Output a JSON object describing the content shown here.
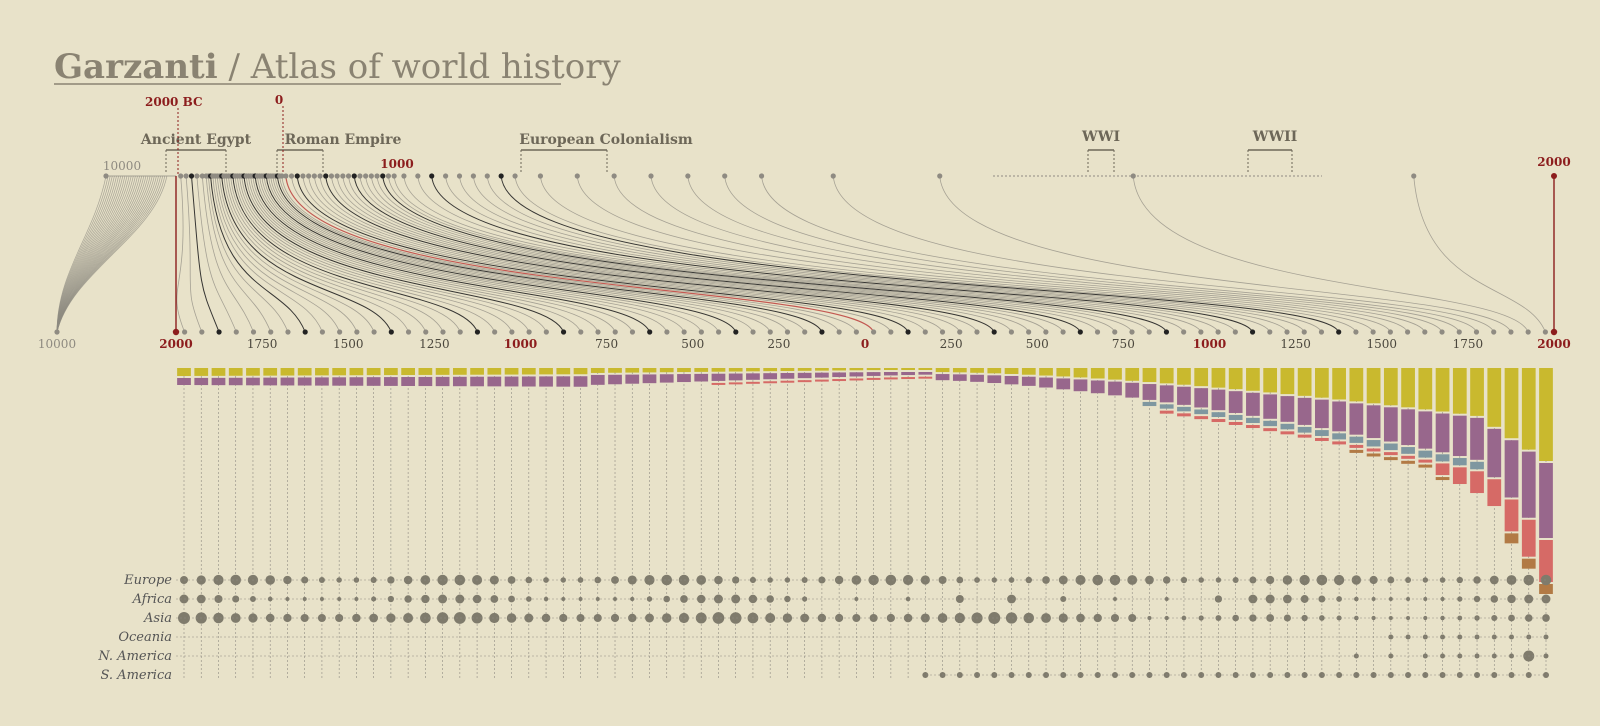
{
  "title": {
    "brand": "Garzanti",
    "separator": " / ",
    "subtitle": "Atlas of world history"
  },
  "markers": {
    "bc2000": "2000 BC",
    "zero": "0",
    "ad1000": "1000",
    "ad2000": "2000",
    "far_left": "10000"
  },
  "eras": [
    {
      "label": "Ancient Egypt",
      "from": 1990,
      "to": 1700
    },
    {
      "label": "Roman Empire",
      "from": 570,
      "to": 200
    },
    {
      "label": "European Colonialism",
      "from": 1390,
      "to": 1650
    },
    {
      "label": "WWI",
      "from": 1914,
      "to": 1918
    },
    {
      "label": "WWII",
      "from": 1939,
      "to": 1945
    }
  ],
  "bottom_axis": {
    "far_left": "10000",
    "ticks": [
      {
        "label": "2000",
        "year": -2000,
        "red": true
      },
      {
        "label": "1750",
        "year": -1750
      },
      {
        "label": "1500",
        "year": -1500
      },
      {
        "label": "1250",
        "year": -1250
      },
      {
        "label": "1000",
        "year": -1000,
        "red": true
      },
      {
        "label": "750",
        "year": -750
      },
      {
        "label": "500",
        "year": -500
      },
      {
        "label": "250",
        "year": -250
      },
      {
        "label": "0",
        "year": 0,
        "red": true
      },
      {
        "label": "250",
        "year": 250
      },
      {
        "label": "500",
        "year": 500
      },
      {
        "label": "750",
        "year": 750
      },
      {
        "label": "1000",
        "year": 1000,
        "red": true
      },
      {
        "label": "1250",
        "year": 1250
      },
      {
        "label": "1500",
        "year": 1500
      },
      {
        "label": "1750",
        "year": 1750
      },
      {
        "label": "2000",
        "year": 2000,
        "red": true
      }
    ]
  },
  "regions": [
    "Europe",
    "Africa",
    "Asia",
    "Oceania",
    "N. America",
    "S. America"
  ],
  "colors": {
    "background": "#e8e2c9",
    "olive": "#c9b92e",
    "purple": "#98678c",
    "steel": "#7f97a0",
    "coral": "#d66a66",
    "brown": "#b27a45",
    "dot": "#7f7b6c",
    "red": "#8c1d1d",
    "grey_line": "#8f8b82",
    "dark_line": "#222222"
  }
}
